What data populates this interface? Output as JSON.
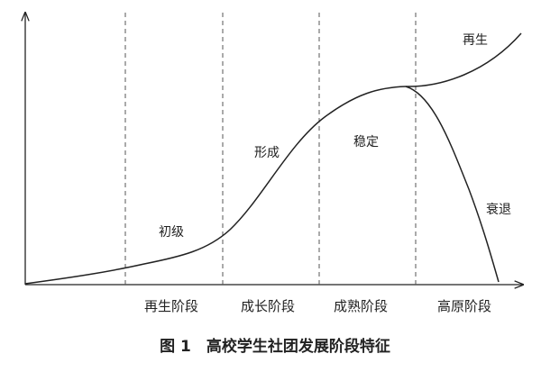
{
  "phases": [
    "初级",
    "形成",
    "稳定",
    "再生",
    "衰退"
  ],
  "stages": [
    "再生阶段",
    "成长阶段",
    "成熟阶段",
    "高原阶段"
  ],
  "caption": "图 1　高校学生社团发展阶段特征"
}
